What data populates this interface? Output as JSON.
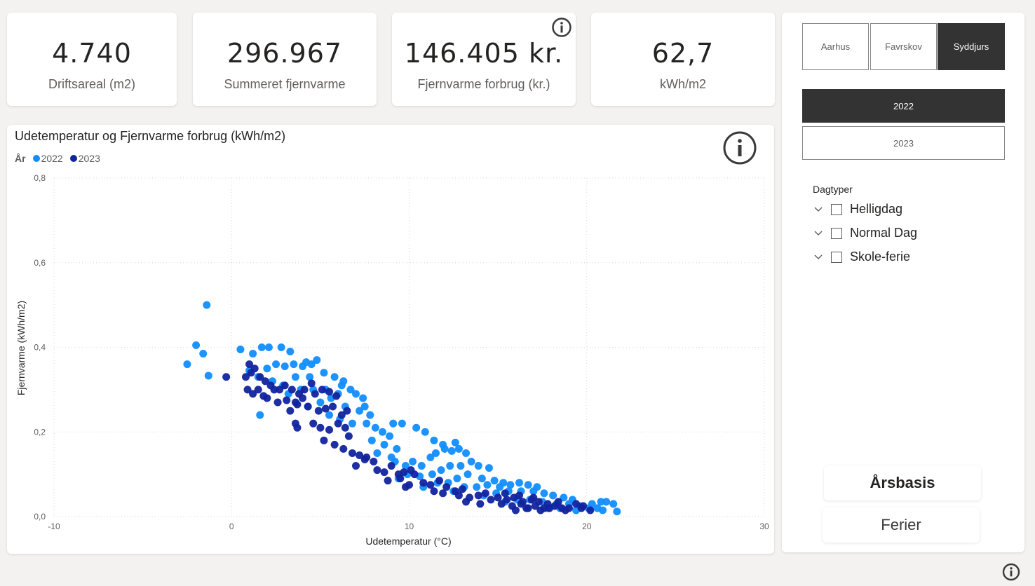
{
  "kpis": [
    {
      "value": "4.740",
      "label": "Driftsareal (m2)"
    },
    {
      "value": "296.967",
      "label": "Summeret fjernvarme"
    },
    {
      "value": "146.405 kr.",
      "label": "Fjernvarme forbrug (kr.)"
    },
    {
      "value": "62,7",
      "label": "kWh/m2"
    }
  ],
  "chart": {
    "title": "Udetemperatur og Fjernvarme forbrug (kWh/m2)",
    "legend_title": "År",
    "xlabel": "Udetemperatur (°C)",
    "ylabel": "Fjernvarme (kWh/m2)",
    "x_ticks": [
      "-10",
      "0",
      "10",
      "20",
      "30"
    ],
    "y_ticks": [
      "0,0",
      "0,2",
      "0,4",
      "0,6",
      "0,8"
    ]
  },
  "chart_data": {
    "type": "scatter",
    "title": "Udetemperatur og Fjernvarme forbrug (kWh/m2)",
    "xlabel": "Udetemperatur (°C)",
    "ylabel": "Fjernvarme (kWh/m2)",
    "xlim": [
      -10,
      30
    ],
    "ylim": [
      0,
      0.8
    ],
    "grid": true,
    "legend_position": "top-left",
    "series": [
      {
        "name": "2022",
        "color": "#118dff",
        "points": [
          [
            -2.5,
            0.36
          ],
          [
            -2,
            0.405
          ],
          [
            -1.6,
            0.385
          ],
          [
            -1.4,
            0.5
          ],
          [
            -1.3,
            0.333
          ],
          [
            0.5,
            0.395
          ],
          [
            1.2,
            0.385
          ],
          [
            1.7,
            0.4
          ],
          [
            2.1,
            0.4
          ],
          [
            2.8,
            0.4
          ],
          [
            3.3,
            0.39
          ],
          [
            1.6,
            0.24
          ],
          [
            1.0,
            0.345
          ],
          [
            1.5,
            0.33
          ],
          [
            2.0,
            0.35
          ],
          [
            2.5,
            0.36
          ],
          [
            3.0,
            0.355
          ],
          [
            3.5,
            0.36
          ],
          [
            4.0,
            0.355
          ],
          [
            4.5,
            0.36
          ],
          [
            4.8,
            0.37
          ],
          [
            4.2,
            0.365
          ],
          [
            2.3,
            0.32
          ],
          [
            2.9,
            0.31
          ],
          [
            3.6,
            0.33
          ],
          [
            4.4,
            0.33
          ],
          [
            5.2,
            0.34
          ],
          [
            5.8,
            0.33
          ],
          [
            6.3,
            0.32
          ],
          [
            6.2,
            0.31
          ],
          [
            3.2,
            0.29
          ],
          [
            3.9,
            0.3
          ],
          [
            4.6,
            0.3
          ],
          [
            5.3,
            0.3
          ],
          [
            6.0,
            0.29
          ],
          [
            6.7,
            0.3
          ],
          [
            7.0,
            0.29
          ],
          [
            7.4,
            0.28
          ],
          [
            4.3,
            0.26
          ],
          [
            5.0,
            0.27
          ],
          [
            5.6,
            0.28
          ],
          [
            6.4,
            0.26
          ],
          [
            7.2,
            0.25
          ],
          [
            7.8,
            0.24
          ],
          [
            7.5,
            0.26
          ],
          [
            5.5,
            0.24
          ],
          [
            6.1,
            0.23
          ],
          [
            6.8,
            0.22
          ],
          [
            7.6,
            0.22
          ],
          [
            8.1,
            0.21
          ],
          [
            8.5,
            0.2
          ],
          [
            8.9,
            0.19
          ],
          [
            7.9,
            0.18
          ],
          [
            8.6,
            0.17
          ],
          [
            9.3,
            0.16
          ],
          [
            8.2,
            0.15
          ],
          [
            9.0,
            0.14
          ],
          [
            9.2,
            0.13
          ],
          [
            9.8,
            0.12
          ],
          [
            10.2,
            0.13
          ],
          [
            10.7,
            0.12
          ],
          [
            11.2,
            0.14
          ],
          [
            11.5,
            0.15
          ],
          [
            12.0,
            0.16
          ],
          [
            12.4,
            0.155
          ],
          [
            12.8,
            0.16
          ],
          [
            13.2,
            0.15
          ],
          [
            9.1,
            0.22
          ],
          [
            9.6,
            0.22
          ],
          [
            10.4,
            0.21
          ],
          [
            10.9,
            0.2
          ],
          [
            11.4,
            0.18
          ],
          [
            11.9,
            0.17
          ],
          [
            12.6,
            0.175
          ],
          [
            9.4,
            0.09
          ],
          [
            9.9,
            0.1
          ],
          [
            10.6,
            0.095
          ],
          [
            11.3,
            0.1
          ],
          [
            11.8,
            0.11
          ],
          [
            12.3,
            0.12
          ],
          [
            12.9,
            0.12
          ],
          [
            13.5,
            0.13
          ],
          [
            13.9,
            0.12
          ],
          [
            14.5,
            0.115
          ],
          [
            10.8,
            0.07
          ],
          [
            11.6,
            0.08
          ],
          [
            12.2,
            0.08
          ],
          [
            12.7,
            0.09
          ],
          [
            13.3,
            0.1
          ],
          [
            14.1,
            0.09
          ],
          [
            14.8,
            0.085
          ],
          [
            15.3,
            0.08
          ],
          [
            12.5,
            0.06
          ],
          [
            13.1,
            0.07
          ],
          [
            13.8,
            0.07
          ],
          [
            14.4,
            0.075
          ],
          [
            15.1,
            0.07
          ],
          [
            15.7,
            0.075
          ],
          [
            16.2,
            0.08
          ],
          [
            16.7,
            0.075
          ],
          [
            17.2,
            0.07
          ],
          [
            14.2,
            0.05
          ],
          [
            14.9,
            0.055
          ],
          [
            15.6,
            0.06
          ],
          [
            16.3,
            0.06
          ],
          [
            17.0,
            0.06
          ],
          [
            17.6,
            0.055
          ],
          [
            18.1,
            0.05
          ],
          [
            18.7,
            0.045
          ],
          [
            19.2,
            0.04
          ],
          [
            15.4,
            0.035
          ],
          [
            16.1,
            0.04
          ],
          [
            16.8,
            0.04
          ],
          [
            17.5,
            0.035
          ],
          [
            18.3,
            0.03
          ],
          [
            19.0,
            0.03
          ],
          [
            19.6,
            0.025
          ],
          [
            20.3,
            0.03
          ],
          [
            20.8,
            0.035
          ],
          [
            21.1,
            0.035
          ],
          [
            17.8,
            0.02
          ],
          [
            18.5,
            0.02
          ],
          [
            19.4,
            0.015
          ],
          [
            20.1,
            0.02
          ],
          [
            20.6,
            0.02
          ],
          [
            21.5,
            0.03
          ],
          [
            21.7,
            0.012
          ],
          [
            20.9,
            0.015
          ]
        ]
      },
      {
        "name": "2023",
        "color": "#12239e",
        "points": [
          [
            -0.3,
            0.33
          ],
          [
            0.8,
            0.33
          ],
          [
            0.9,
            0.3
          ],
          [
            1.1,
            0.34
          ],
          [
            1.0,
            0.36
          ],
          [
            1.3,
            0.35
          ],
          [
            1.6,
            0.33
          ],
          [
            1.9,
            0.32
          ],
          [
            2.2,
            0.31
          ],
          [
            1.2,
            0.29
          ],
          [
            1.5,
            0.3
          ],
          [
            1.8,
            0.285
          ],
          [
            2.4,
            0.3
          ],
          [
            2.7,
            0.3
          ],
          [
            3.0,
            0.31
          ],
          [
            3.4,
            0.3
          ],
          [
            3.8,
            0.29
          ],
          [
            4.1,
            0.3
          ],
          [
            4.5,
            0.315
          ],
          [
            2.0,
            0.28
          ],
          [
            2.6,
            0.27
          ],
          [
            3.1,
            0.275
          ],
          [
            3.6,
            0.27
          ],
          [
            4.0,
            0.28
          ],
          [
            4.7,
            0.29
          ],
          [
            5.1,
            0.3
          ],
          [
            5.5,
            0.295
          ],
          [
            5.9,
            0.285
          ],
          [
            3.3,
            0.25
          ],
          [
            3.7,
            0.265
          ],
          [
            4.3,
            0.26
          ],
          [
            4.9,
            0.25
          ],
          [
            5.3,
            0.255
          ],
          [
            5.7,
            0.26
          ],
          [
            6.2,
            0.24
          ],
          [
            6.5,
            0.25
          ],
          [
            3.6,
            0.22
          ],
          [
            3.7,
            0.21
          ],
          [
            4.6,
            0.22
          ],
          [
            5.0,
            0.21
          ],
          [
            5.5,
            0.205
          ],
          [
            6.0,
            0.22
          ],
          [
            6.4,
            0.21
          ],
          [
            6.6,
            0.19
          ],
          [
            5.2,
            0.18
          ],
          [
            5.8,
            0.17
          ],
          [
            6.3,
            0.16
          ],
          [
            6.8,
            0.15
          ],
          [
            7.2,
            0.145
          ],
          [
            7.6,
            0.14
          ],
          [
            8.0,
            0.13
          ],
          [
            7.0,
            0.12
          ],
          [
            7.5,
            0.135
          ],
          [
            8.2,
            0.11
          ],
          [
            8.6,
            0.105
          ],
          [
            9.0,
            0.12
          ],
          [
            9.4,
            0.1
          ],
          [
            9.7,
            0.105
          ],
          [
            10.1,
            0.11
          ],
          [
            8.8,
            0.085
          ],
          [
            9.5,
            0.09
          ],
          [
            10.3,
            0.1
          ],
          [
            10.8,
            0.08
          ],
          [
            11.2,
            0.075
          ],
          [
            11.7,
            0.085
          ],
          [
            12.1,
            0.07
          ],
          [
            12.6,
            0.06
          ],
          [
            13.0,
            0.065
          ],
          [
            9.8,
            0.07
          ],
          [
            10.0,
            0.075
          ],
          [
            11.4,
            0.06
          ],
          [
            11.9,
            0.055
          ],
          [
            12.8,
            0.05
          ],
          [
            13.4,
            0.045
          ],
          [
            13.9,
            0.05
          ],
          [
            14.3,
            0.055
          ],
          [
            14.6,
            0.04
          ],
          [
            15.0,
            0.045
          ],
          [
            15.5,
            0.04
          ],
          [
            15.9,
            0.045
          ],
          [
            16.4,
            0.035
          ],
          [
            16.9,
            0.04
          ],
          [
            17.3,
            0.035
          ],
          [
            17.8,
            0.03
          ],
          [
            15.2,
            0.03
          ],
          [
            15.8,
            0.025
          ],
          [
            16.3,
            0.03
          ],
          [
            16.7,
            0.02
          ],
          [
            17.1,
            0.025
          ],
          [
            17.6,
            0.02
          ],
          [
            18.2,
            0.025
          ],
          [
            18.6,
            0.02
          ],
          [
            19.0,
            0.02
          ],
          [
            19.4,
            0.03
          ],
          [
            16.0,
            0.015
          ],
          [
            16.6,
            0.02
          ],
          [
            17.4,
            0.015
          ],
          [
            17.9,
            0.02
          ],
          [
            18.8,
            0.015
          ],
          [
            19.7,
            0.02
          ],
          [
            20.2,
            0.015
          ],
          [
            13.2,
            0.035
          ],
          [
            14.0,
            0.03
          ],
          [
            15.4,
            0.055
          ],
          [
            16.2,
            0.05
          ],
          [
            17.0,
            0.045
          ],
          [
            18.4,
            0.035
          ],
          [
            19.8,
            0.025
          ]
        ]
      }
    ]
  },
  "slicers": {
    "regions": [
      {
        "label": "Aarhus",
        "selected": false
      },
      {
        "label": "Favrskov",
        "selected": false
      },
      {
        "label": "Syddjurs",
        "selected": true
      }
    ],
    "years": [
      {
        "label": "2022",
        "selected": true
      },
      {
        "label": "2023",
        "selected": false
      }
    ],
    "dagtyper": {
      "title": "Dagtyper",
      "items": [
        {
          "label": "Helligdag",
          "checked": false
        },
        {
          "label": "Normal Dag",
          "checked": false
        },
        {
          "label": "Skole-ferie",
          "checked": false
        }
      ]
    }
  },
  "nav_buttons": {
    "arsbasis": "Årsbasis",
    "ferier": "Ferier"
  },
  "colors": {
    "series_2022": "#118dff",
    "series_2023": "#12239e",
    "selected_slicer": "#333333"
  },
  "icons": [
    "info-icon",
    "chevron-down-icon",
    "checkbox-icon"
  ]
}
